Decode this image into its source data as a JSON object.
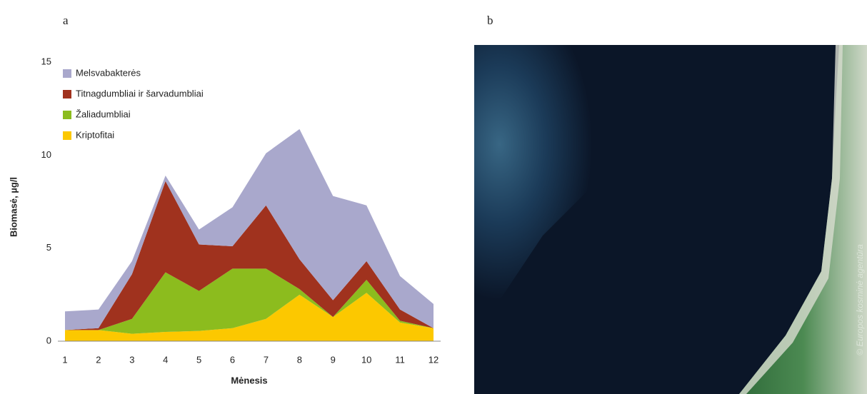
{
  "panel_labels": [
    "a",
    "b"
  ],
  "chart_data": {
    "type": "stacked-area",
    "xlabel": "Mėnesis",
    "ylabel": "Biomasė, µg/l",
    "x": [
      1,
      2,
      3,
      4,
      5,
      6,
      7,
      8,
      9,
      10,
      11,
      12
    ],
    "xlim": [
      1,
      12
    ],
    "xticks": [
      1,
      2,
      3,
      4,
      5,
      6,
      7,
      8,
      9,
      10,
      11,
      12
    ],
    "ylim": [
      0,
      15
    ],
    "yticks": [
      0,
      5,
      10,
      15
    ],
    "legend": "top-left",
    "series": [
      {
        "name": "Melsvabakterės",
        "color": "#a9a8cc",
        "values": [
          1.0,
          1.0,
          0.7,
          0.3,
          0.8,
          2.1,
          2.8,
          7.0,
          5.6,
          3.0,
          1.8,
          1.3
        ]
      },
      {
        "name": "Titnagdumbliai ir šarvadumbliai",
        "color": "#a0321e",
        "values": [
          0,
          0.1,
          2.4,
          4.9,
          2.5,
          1.2,
          3.4,
          1.6,
          0.9,
          1.0,
          0.6,
          0
        ]
      },
      {
        "name": "Žaliadumbliai",
        "color": "#8cbc1e",
        "values": [
          0,
          0,
          0.8,
          3.2,
          2.15,
          3.2,
          2.7,
          0.3,
          0,
          0.7,
          0.1,
          0
        ]
      },
      {
        "name": "Kriptofitai",
        "color": "#fcc800",
        "values": [
          0.6,
          0.6,
          0.4,
          0.5,
          0.55,
          0.7,
          1.2,
          2.5,
          1.3,
          2.6,
          1.0,
          0.7
        ]
      }
    ]
  },
  "image": {
    "credit": "© Europos kosminė agentūra"
  }
}
